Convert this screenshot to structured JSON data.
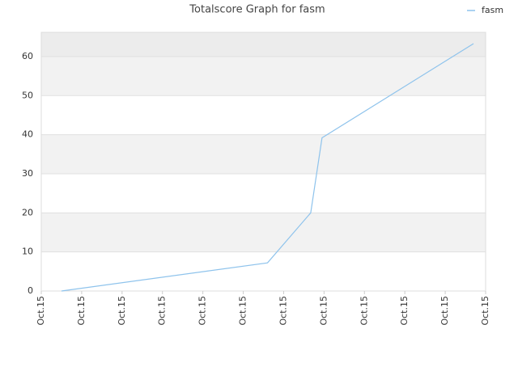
{
  "chart_data": {
    "type": "line",
    "title": "Totalscore Graph for fasm",
    "x": [
      0.5,
      5.6,
      6.67,
      6.95,
      10.7
    ],
    "series": [
      {
        "name": "fasm",
        "color": "#8ec3ec",
        "values": [
          0,
          7.2,
          20,
          39.2,
          63.3
        ]
      }
    ],
    "xlim": [
      0,
      11
    ],
    "xticks": [
      {
        "value": 0,
        "label": "Oct.15"
      },
      {
        "value": 1,
        "label": "Oct.15"
      },
      {
        "value": 2,
        "label": "Oct.15"
      },
      {
        "value": 3,
        "label": "Oct.15"
      },
      {
        "value": 4,
        "label": "Oct.15"
      },
      {
        "value": 5,
        "label": "Oct.15"
      },
      {
        "value": 6,
        "label": "Oct.15"
      },
      {
        "value": 7,
        "label": "Oct.15"
      },
      {
        "value": 8,
        "label": "Oct.15"
      },
      {
        "value": 9,
        "label": "Oct.15"
      },
      {
        "value": 10,
        "label": "Oct.15"
      },
      {
        "value": 11,
        "label": "Oct.15"
      }
    ],
    "ylim": [
      0,
      66.2
    ],
    "yticks": [
      0,
      10,
      20,
      30,
      40,
      50,
      60
    ],
    "grid": true,
    "legend": "top-right"
  }
}
